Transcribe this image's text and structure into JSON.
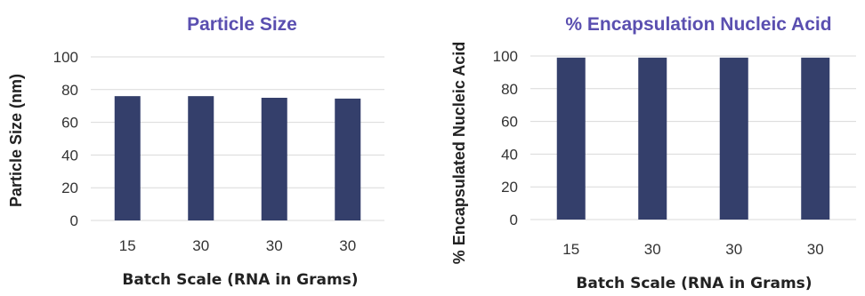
{
  "chart_data": [
    {
      "type": "bar",
      "title": "Particle Size",
      "ylabel": "Particle Size (nm)",
      "xlabel": "Batch Scale (RNA in Grams)",
      "categories": [
        "15",
        "30",
        "30",
        "30"
      ],
      "values": [
        76,
        76,
        75,
        74.5
      ],
      "ylim": [
        0,
        100
      ],
      "yticks": [
        0,
        20,
        40,
        60,
        80,
        100
      ],
      "grid": true,
      "bar_color": "#343f6b"
    },
    {
      "type": "bar",
      "title": "% Encapsulation Nucleic Acid",
      "ylabel": "% Encapsulated Nucleic Acid",
      "xlabel": "Batch Scale (RNA in Grams)",
      "categories": [
        "15",
        "30",
        "30",
        "30"
      ],
      "values": [
        99,
        99,
        99,
        99
      ],
      "ylim": [
        0,
        100
      ],
      "yticks": [
        0,
        20,
        40,
        60,
        80,
        100
      ],
      "grid": true,
      "bar_color": "#343f6b"
    }
  ]
}
